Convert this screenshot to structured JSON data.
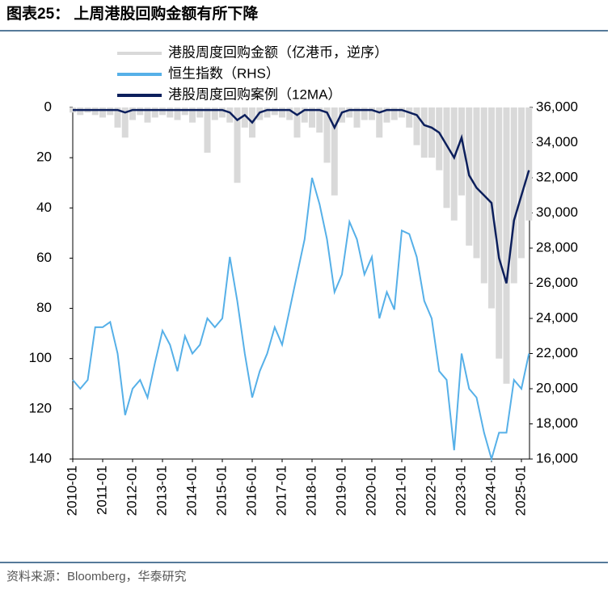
{
  "chart_data": {
    "type": "line",
    "title": "图表25：  上周港股回购金额有所下降",
    "source": "资料来源：Bloomberg，华泰研究",
    "x": [
      "2010-01",
      "2010-04",
      "2010-07",
      "2010-10",
      "2011-01",
      "2011-04",
      "2011-07",
      "2011-10",
      "2012-01",
      "2012-04",
      "2012-07",
      "2012-10",
      "2013-01",
      "2013-04",
      "2013-07",
      "2013-10",
      "2014-01",
      "2014-04",
      "2014-07",
      "2014-10",
      "2015-01",
      "2015-04",
      "2015-07",
      "2015-10",
      "2016-01",
      "2016-04",
      "2016-07",
      "2016-10",
      "2017-01",
      "2017-04",
      "2017-07",
      "2017-10",
      "2018-01",
      "2018-04",
      "2018-07",
      "2018-10",
      "2019-01",
      "2019-04",
      "2019-07",
      "2019-10",
      "2020-01",
      "2020-04",
      "2020-07",
      "2020-10",
      "2021-01",
      "2021-04",
      "2021-07",
      "2021-10",
      "2022-01",
      "2022-04",
      "2022-07",
      "2022-10",
      "2023-01",
      "2023-04",
      "2023-07",
      "2023-10",
      "2024-01",
      "2024-04",
      "2024-07",
      "2024-10",
      "2025-01",
      "2025-04"
    ],
    "xticks": [
      "2010-01",
      "2011-01",
      "2012-01",
      "2013-01",
      "2014-01",
      "2015-01",
      "2016-01",
      "2017-01",
      "2018-01",
      "2019-01",
      "2020-01",
      "2021-01",
      "2022-01",
      "2023-01",
      "2024-01",
      "2025-01"
    ],
    "ylim": [
      0,
      140
    ],
    "y_inverted": true,
    "yticks": [
      0,
      20,
      40,
      60,
      80,
      100,
      120,
      140
    ],
    "y2lim": [
      16000,
      36000
    ],
    "y2ticks": [
      {
        "value": 16000,
        "label": "16,000"
      },
      {
        "value": 18000,
        "label": "18,000"
      },
      {
        "value": 20000,
        "label": "20,000"
      },
      {
        "value": 22000,
        "label": "22,000"
      },
      {
        "value": 24000,
        "label": "24,000"
      },
      {
        "value": 26000,
        "label": "26,000"
      },
      {
        "value": 28000,
        "label": "28,000"
      },
      {
        "value": 30000,
        "label": "30,000"
      },
      {
        "value": 32000,
        "label": "32,000"
      },
      {
        "value": 34000,
        "label": "34,000"
      },
      {
        "value": 36000,
        "label": "36,000"
      }
    ],
    "series": [
      {
        "name": "港股周度回购金额（亿港币，逆序）",
        "color": "#d9d9d9",
        "kind": "bar",
        "values": [
          2,
          3,
          2,
          3,
          4,
          3,
          8,
          12,
          5,
          3,
          6,
          4,
          3,
          4,
          5,
          3,
          6,
          4,
          18,
          5,
          4,
          6,
          30,
          8,
          12,
          5,
          4,
          3,
          4,
          5,
          12,
          6,
          8,
          10,
          22,
          35,
          6,
          4,
          8,
          5,
          5,
          12,
          6,
          5,
          4,
          8,
          15,
          20,
          20,
          25,
          40,
          45,
          35,
          55,
          60,
          70,
          80,
          100,
          110,
          70,
          60,
          45
        ]
      },
      {
        "name": "恒生指数（RHS）",
        "color": "#56b0e8",
        "axis": "y2",
        "values": [
          20500,
          20000,
          20500,
          23500,
          23500,
          23800,
          22000,
          18500,
          20000,
          20500,
          19500,
          21500,
          23300,
          22500,
          21000,
          23000,
          22000,
          22500,
          24000,
          23500,
          24000,
          27500,
          25000,
          22000,
          19500,
          21000,
          22000,
          23500,
          22500,
          24500,
          26500,
          28500,
          32000,
          30500,
          28500,
          25500,
          26500,
          29500,
          28500,
          26500,
          27500,
          24000,
          25500,
          24500,
          29000,
          28800,
          27500,
          25000,
          24000,
          21000,
          20500,
          16500,
          22000,
          20000,
          19500,
          17500,
          16000,
          17500,
          17500,
          20500,
          20000,
          22000
        ]
      },
      {
        "name": "港股周度回购案例（12MA）",
        "color": "#0c1f5c",
        "values": [
          1,
          1,
          1,
          1,
          1,
          1,
          1,
          2,
          1,
          1,
          1,
          1,
          1,
          1,
          1,
          1,
          1,
          1,
          1,
          1,
          1,
          2,
          5,
          3,
          6,
          2,
          1,
          1,
          1,
          1,
          3,
          1,
          1,
          1,
          2,
          8,
          2,
          1,
          1,
          1,
          1,
          2,
          1,
          1,
          1,
          2,
          3,
          7,
          8,
          10,
          15,
          20,
          12,
          27,
          32,
          35,
          38,
          60,
          70,
          45,
          35,
          25
        ]
      }
    ]
  }
}
